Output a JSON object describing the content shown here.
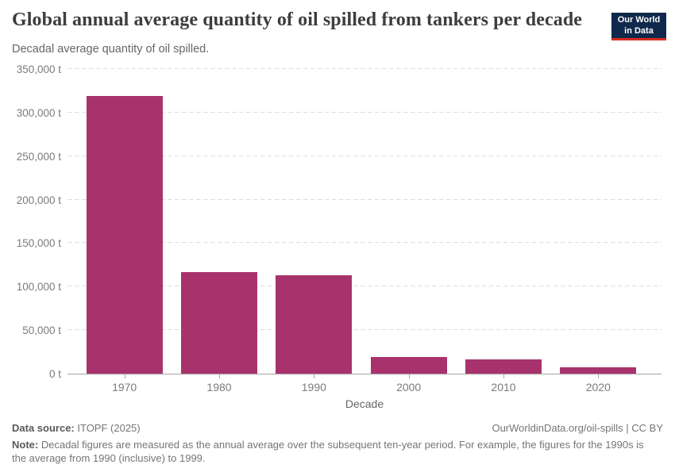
{
  "header": {
    "title": "Global annual average quantity of oil spilled from tankers per decade",
    "subtitle": "Decadal average quantity of oil spilled.",
    "logo": {
      "line1": "Our World",
      "line2": "in Data"
    }
  },
  "chart_data": {
    "type": "bar",
    "title": "Global annual average quantity of oil spilled from tankers per decade",
    "categories": [
      "1970",
      "1980",
      "1990",
      "2000",
      "2010",
      "2020"
    ],
    "values": [
      319000,
      117000,
      113000,
      19000,
      16000,
      7500
    ],
    "unit": "t",
    "xlabel": "Decade",
    "ylabel": "",
    "ylim": [
      0,
      350000
    ],
    "y_tick_values": [
      0,
      50000,
      100000,
      150000,
      200000,
      250000,
      300000,
      350000
    ],
    "y_tick_labels": [
      "0 t",
      "50,000 t",
      "100,000 t",
      "150,000 t",
      "200,000 t",
      "250,000 t",
      "300,000 t",
      "350,000 t"
    ],
    "grid": "horizontal-dashed",
    "legend": "none",
    "bar_color": "#a8336c"
  },
  "footer": {
    "source_label": "Data source:",
    "source_value": "ITOPF (2025)",
    "attribution": "OurWorldinData.org/oil-spills | CC BY",
    "note_label": "Note:",
    "note_text": "Decadal figures are measured as the annual average over the subsequent ten-year period. For example, the figures for the 1990s is the average from 1990 (inclusive) to 1999."
  },
  "colors": {
    "bar": "#a8336c",
    "title_text": "#3d3d3d",
    "subtitle_text": "#666666",
    "axis_text": "#7b7b7b",
    "gridline": "#dcdcdc",
    "axis_line": "#a6a6a6",
    "logo_bg": "#10284b",
    "logo_accent": "#d72d1e",
    "footer_text": "#757575"
  }
}
